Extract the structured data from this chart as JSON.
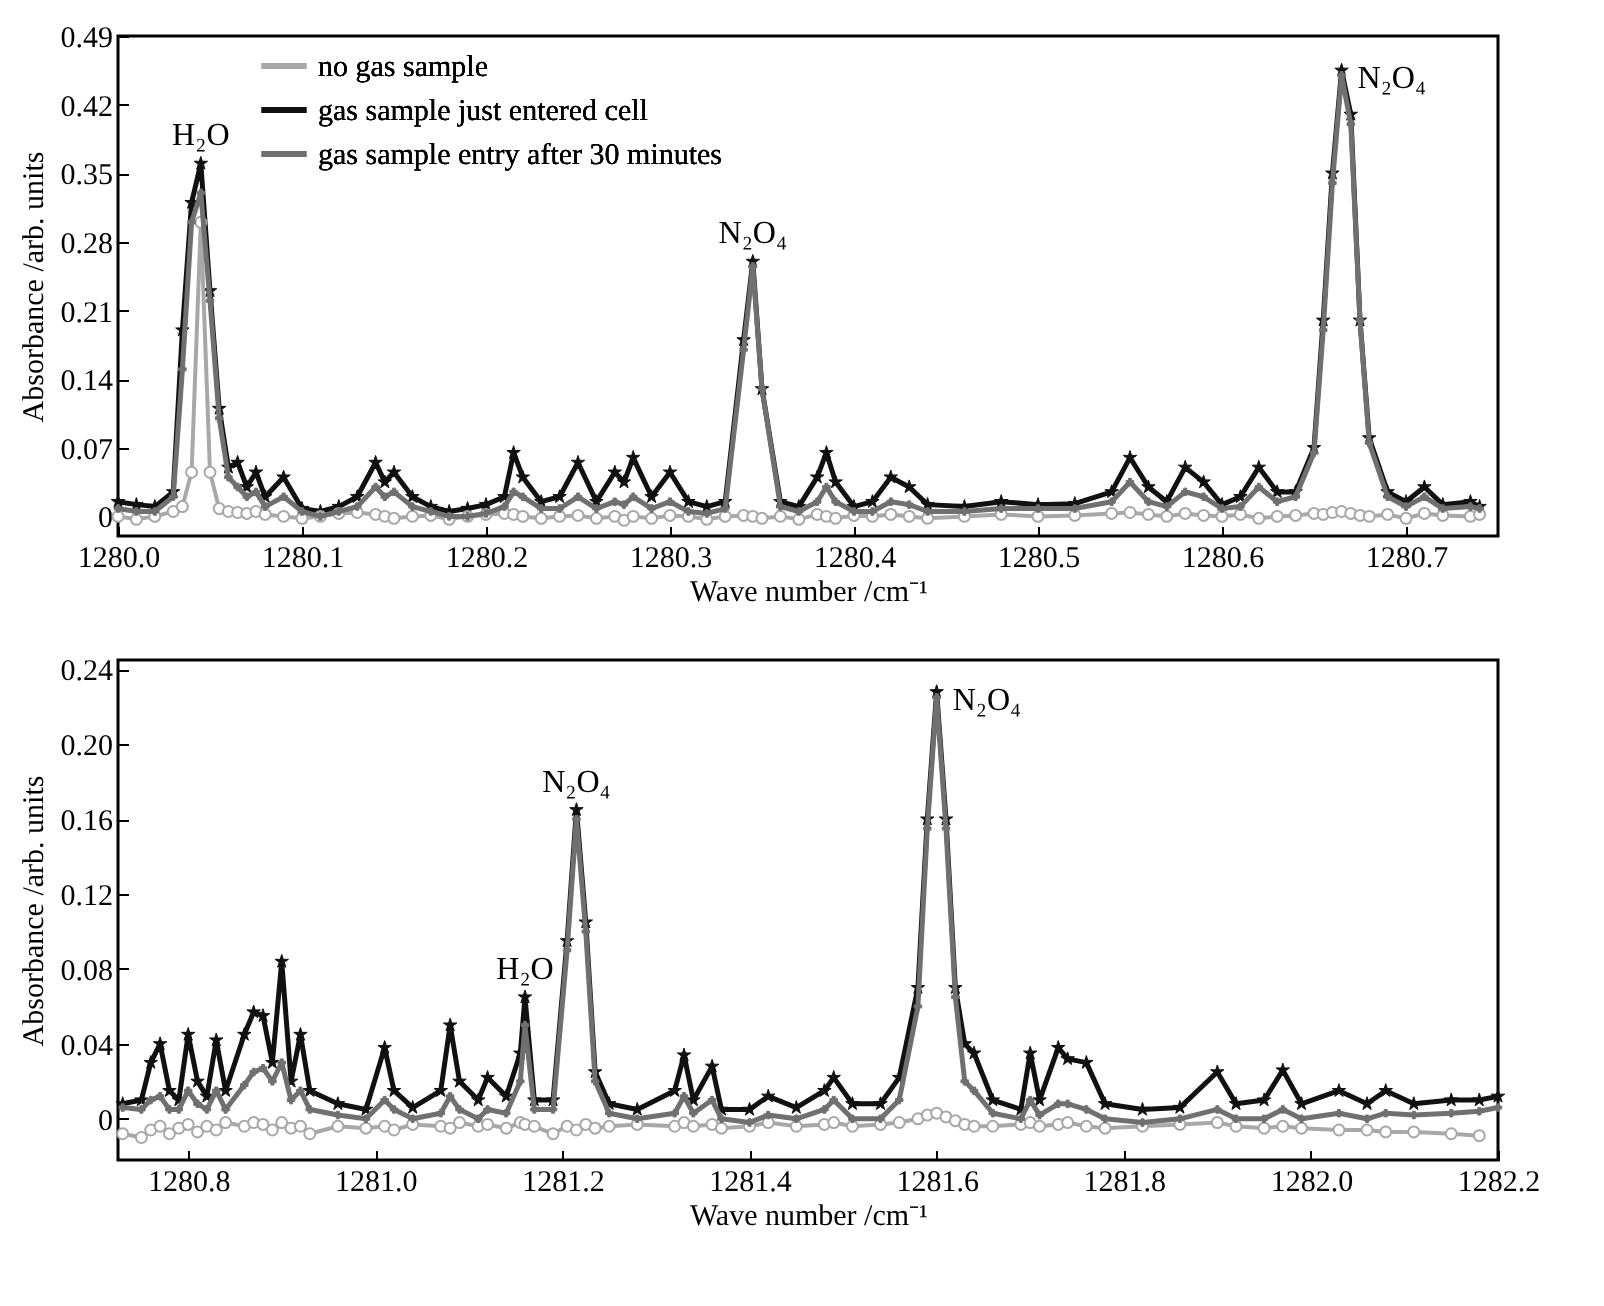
{
  "chart_data": [
    {
      "type": "line",
      "xlabel": "Wave number /cm⁻¹",
      "ylabel": "Absorbance /arb. units",
      "legend": "top left",
      "xlim": [
        1280.0,
        1280.75
      ],
      "xticks": [
        {
          "value": 1280,
          "label": "1280.0"
        },
        {
          "value": 1280.1,
          "label": "1280.1"
        },
        {
          "value": 1280.2,
          "label": "1280.2"
        },
        {
          "value": 1280.3,
          "label": "1280.3"
        },
        {
          "value": 1280.4,
          "label": "1280.4"
        },
        {
          "value": 1280.5,
          "label": "1280.5"
        },
        {
          "value": 1280.6,
          "label": "1280.6"
        },
        {
          "value": 1280.7,
          "label": "1280.7"
        }
      ],
      "ylim": [
        -0.02,
        0.49
      ],
      "yticks": [
        0,
        0.07,
        0.14,
        0.21,
        0.28,
        0.35,
        0.42,
        0.49
      ],
      "annotations": [
        {
          "text": "H₂O",
          "x": 1280.045,
          "y": 0.36
        },
        {
          "text": "N₂O₄",
          "x": 1280.345,
          "y": 0.26
        },
        {
          "text": "N₂O₄",
          "x": 1280.665,
          "y": 0.455
        }
      ],
      "x": [
        1280.0,
        1280.01,
        1280.02,
        1280.03,
        1280.035,
        1280.04,
        1280.045,
        1280.05,
        1280.055,
        1280.06,
        1280.065,
        1280.07,
        1280.075,
        1280.08,
        1280.09,
        1280.1,
        1280.11,
        1280.12,
        1280.13,
        1280.14,
        1280.145,
        1280.15,
        1280.16,
        1280.17,
        1280.18,
        1280.19,
        1280.2,
        1280.21,
        1280.215,
        1280.22,
        1280.23,
        1280.24,
        1280.25,
        1280.26,
        1280.27,
        1280.275,
        1280.28,
        1280.29,
        1280.3,
        1280.31,
        1280.32,
        1280.33,
        1280.34,
        1280.345,
        1280.35,
        1280.36,
        1280.37,
        1280.38,
        1280.385,
        1280.39,
        1280.4,
        1280.41,
        1280.42,
        1280.43,
        1280.44,
        1280.46,
        1280.48,
        1280.5,
        1280.52,
        1280.54,
        1280.55,
        1280.56,
        1280.57,
        1280.58,
        1280.59,
        1280.6,
        1280.61,
        1280.62,
        1280.63,
        1280.64,
        1280.65,
        1280.655,
        1280.66,
        1280.665,
        1280.67,
        1280.675,
        1280.68,
        1280.69,
        1280.7,
        1280.71,
        1280.72,
        1280.735,
        1280.74
      ],
      "series": [
        {
          "name": "no gas sample",
          "color": "#a8a8a8",
          "marker": "circle",
          "values": [
            0.0,
            -0.003,
            0.0,
            0.005,
            0.01,
            0.045,
            0.3,
            0.045,
            0.008,
            0.005,
            0.004,
            0.003,
            0.005,
            0.002,
            0.0,
            -0.002,
            0.0,
            0.003,
            0.004,
            0.002,
            0.0,
            -0.002,
            0.0,
            0.001,
            -0.003,
            0.0,
            0.002,
            0.003,
            0.002,
            0.0,
            -0.002,
            0.0,
            0.001,
            -0.002,
            0.0,
            -0.004,
            0.0,
            -0.002,
            0.001,
            0.0,
            -0.003,
            0.0,
            0.001,
            0.0,
            -0.002,
            0.0,
            -0.003,
            0.002,
            0.0,
            -0.002,
            0.001,
            0.0,
            0.002,
            0.0,
            -0.002,
            0.0,
            0.002,
            0.0,
            0.001,
            0.003,
            0.004,
            0.002,
            0.0,
            0.003,
            0.001,
            0.0,
            0.002,
            -0.002,
            0.0,
            0.001,
            0.003,
            0.002,
            0.004,
            0.005,
            0.003,
            0.001,
            0.0,
            0.002,
            -0.002,
            0.003,
            0.001,
            0.0,
            0.002
          ]
        },
        {
          "name": "gas sample just entered cell",
          "color": "#111111",
          "marker": "star",
          "values": [
            0.015,
            0.012,
            0.01,
            0.025,
            0.19,
            0.32,
            0.36,
            0.23,
            0.11,
            0.05,
            0.055,
            0.03,
            0.045,
            0.02,
            0.04,
            0.008,
            0.005,
            0.01,
            0.02,
            0.055,
            0.035,
            0.045,
            0.02,
            0.01,
            0.005,
            0.008,
            0.012,
            0.02,
            0.065,
            0.04,
            0.015,
            0.02,
            0.055,
            0.015,
            0.045,
            0.035,
            0.06,
            0.02,
            0.045,
            0.015,
            0.01,
            0.015,
            0.18,
            0.26,
            0.13,
            0.015,
            0.01,
            0.04,
            0.065,
            0.035,
            0.01,
            0.015,
            0.04,
            0.03,
            0.012,
            0.01,
            0.015,
            0.012,
            0.013,
            0.025,
            0.06,
            0.03,
            0.015,
            0.05,
            0.035,
            0.012,
            0.02,
            0.05,
            0.025,
            0.025,
            0.07,
            0.2,
            0.35,
            0.455,
            0.41,
            0.2,
            0.08,
            0.025,
            0.015,
            0.03,
            0.012,
            0.015,
            0.01
          ]
        },
        {
          "name": "gas sample entry after 30 minutes",
          "color": "#707070",
          "marker": "cross",
          "values": [
            0.008,
            0.005,
            0.005,
            0.02,
            0.15,
            0.3,
            0.33,
            0.22,
            0.1,
            0.04,
            0.03,
            0.02,
            0.025,
            0.01,
            0.02,
            0.005,
            0.0,
            0.005,
            0.01,
            0.03,
            0.02,
            0.025,
            0.01,
            0.005,
            0.0,
            0.0,
            0.003,
            0.01,
            0.025,
            0.02,
            0.008,
            0.008,
            0.02,
            0.008,
            0.015,
            0.012,
            0.02,
            0.008,
            0.015,
            0.005,
            0.003,
            0.008,
            0.17,
            0.255,
            0.13,
            0.01,
            0.005,
            0.015,
            0.03,
            0.015,
            0.005,
            0.005,
            0.015,
            0.012,
            0.005,
            0.005,
            0.008,
            0.008,
            0.008,
            0.015,
            0.035,
            0.015,
            0.01,
            0.025,
            0.02,
            0.008,
            0.01,
            0.03,
            0.015,
            0.02,
            0.065,
            0.19,
            0.34,
            0.45,
            0.4,
            0.2,
            0.075,
            0.02,
            0.01,
            0.02,
            0.008,
            0.01,
            0.008
          ]
        }
      ]
    },
    {
      "type": "line",
      "xlabel": "Wave number /cm⁻¹",
      "ylabel": "Absorbance /arb. units",
      "xlim": [
        1280.725,
        1282.2
      ],
      "xticks": [
        {
          "value": 1280.8,
          "label": "1280.8"
        },
        {
          "value": 1281,
          "label": "1281.0"
        },
        {
          "value": 1281.2,
          "label": "1281.2"
        },
        {
          "value": 1281.4,
          "label": "1281.4"
        },
        {
          "value": 1281.6,
          "label": "1281.6"
        },
        {
          "value": 1281.8,
          "label": "1281.8"
        },
        {
          "value": 1282,
          "label": "1282.0"
        },
        {
          "value": 1282.2,
          "label": "1282.2"
        }
      ],
      "ylim": [
        -0.022,
        0.245
      ],
      "yticks": [
        0,
        0.04,
        0.08,
        0.12,
        0.16,
        {
          "value": 0.2,
          "label": "0.20"
        },
        0.24
      ],
      "annotations": [
        {
          "text": "H₂O",
          "x": 1281.16,
          "y": 0.065
        },
        {
          "text": "N₂O₄",
          "x": 1281.215,
          "y": 0.165
        },
        {
          "text": "N₂O₄",
          "x": 1281.6,
          "y": 0.228
        }
      ],
      "x": [
        1280.73,
        1280.75,
        1280.76,
        1280.77,
        1280.78,
        1280.79,
        1280.8,
        1280.81,
        1280.82,
        1280.83,
        1280.84,
        1280.86,
        1280.87,
        1280.88,
        1280.89,
        1280.9,
        1280.91,
        1280.92,
        1280.93,
        1280.96,
        1280.99,
        1281.01,
        1281.02,
        1281.04,
        1281.07,
        1281.08,
        1281.09,
        1281.11,
        1281.12,
        1281.14,
        1281.155,
        1281.16,
        1281.17,
        1281.19,
        1281.205,
        1281.215,
        1281.225,
        1281.235,
        1281.25,
        1281.28,
        1281.32,
        1281.33,
        1281.34,
        1281.36,
        1281.37,
        1281.4,
        1281.42,
        1281.45,
        1281.48,
        1281.49,
        1281.51,
        1281.54,
        1281.56,
        1281.58,
        1281.59,
        1281.6,
        1281.61,
        1281.62,
        1281.63,
        1281.64,
        1281.66,
        1281.69,
        1281.7,
        1281.71,
        1281.73,
        1281.74,
        1281.76,
        1281.78,
        1281.82,
        1281.86,
        1281.9,
        1281.92,
        1281.95,
        1281.97,
        1281.99,
        1282.03,
        1282.06,
        1282.08,
        1282.11,
        1282.15,
        1282.18,
        1282.2
      ],
      "series": [
        {
          "color": "#a8a8a8",
          "marker": "circle",
          "values": [
            -0.008,
            -0.01,
            -0.006,
            -0.004,
            -0.008,
            -0.005,
            -0.003,
            -0.007,
            -0.004,
            -0.006,
            -0.002,
            -0.004,
            -0.002,
            -0.003,
            -0.006,
            -0.002,
            -0.005,
            -0.004,
            -0.008,
            -0.004,
            -0.005,
            -0.004,
            -0.006,
            -0.003,
            -0.004,
            -0.005,
            -0.002,
            -0.004,
            -0.003,
            -0.005,
            -0.002,
            -0.003,
            -0.004,
            -0.008,
            -0.004,
            -0.006,
            -0.003,
            -0.005,
            -0.004,
            -0.003,
            -0.004,
            -0.002,
            -0.004,
            -0.003,
            -0.005,
            -0.004,
            -0.002,
            -0.004,
            -0.003,
            -0.002,
            -0.004,
            -0.003,
            -0.002,
            0.0,
            0.002,
            0.003,
            0.001,
            -0.001,
            -0.003,
            -0.004,
            -0.004,
            -0.003,
            -0.002,
            -0.004,
            -0.003,
            -0.002,
            -0.004,
            -0.005,
            -0.004,
            -0.003,
            -0.002,
            -0.004,
            -0.005,
            -0.004,
            -0.005,
            -0.006,
            -0.006,
            -0.007,
            -0.007,
            -0.008,
            -0.009,
            null
          ]
        },
        {
          "color": "#111111",
          "marker": "star",
          "values": [
            0.008,
            0.01,
            0.03,
            0.04,
            0.015,
            0.01,
            0.045,
            0.02,
            0.012,
            0.042,
            0.015,
            0.045,
            0.057,
            0.055,
            0.03,
            0.084,
            0.02,
            0.045,
            0.015,
            0.008,
            0.005,
            0.038,
            0.015,
            0.006,
            0.015,
            0.05,
            0.02,
            0.01,
            0.022,
            0.012,
            0.035,
            0.065,
            0.01,
            0.01,
            0.095,
            0.165,
            0.105,
            0.025,
            0.008,
            0.005,
            0.015,
            0.034,
            0.01,
            0.028,
            0.005,
            0.005,
            0.012,
            0.006,
            0.015,
            0.022,
            0.008,
            0.008,
            0.022,
            0.07,
            0.16,
            0.228,
            0.16,
            0.07,
            0.04,
            0.035,
            0.01,
            0.005,
            0.035,
            0.01,
            0.038,
            0.032,
            0.03,
            0.008,
            0.005,
            0.006,
            0.025,
            0.008,
            0.01,
            0.026,
            0.008,
            0.015,
            0.008,
            0.015,
            0.008,
            0.01,
            0.01,
            0.012
          ]
        },
        {
          "color": "#707070",
          "marker": "cross",
          "values": [
            0.006,
            0.005,
            0.01,
            0.012,
            0.005,
            0.005,
            0.015,
            0.008,
            0.005,
            0.015,
            0.005,
            0.018,
            0.025,
            0.027,
            0.02,
            0.03,
            0.01,
            0.015,
            0.005,
            0.002,
            0.0,
            0.01,
            0.005,
            0.0,
            0.003,
            0.012,
            0.005,
            0.0,
            0.005,
            0.003,
            0.02,
            0.05,
            0.005,
            0.005,
            0.09,
            0.16,
            0.1,
            0.02,
            0.003,
            0.0,
            0.003,
            0.012,
            0.003,
            0.01,
            0.0,
            -0.002,
            0.002,
            0.0,
            0.005,
            0.01,
            0.0,
            0.0,
            0.01,
            0.06,
            0.155,
            0.225,
            0.155,
            0.065,
            0.02,
            0.015,
            0.003,
            0.0,
            0.01,
            0.002,
            0.008,
            0.008,
            0.005,
            0.0,
            -0.002,
            0.0,
            0.005,
            0.0,
            0.0,
            0.005,
            0.0,
            0.003,
            0.0,
            0.003,
            0.002,
            0.003,
            0.004,
            0.006
          ]
        }
      ]
    }
  ]
}
